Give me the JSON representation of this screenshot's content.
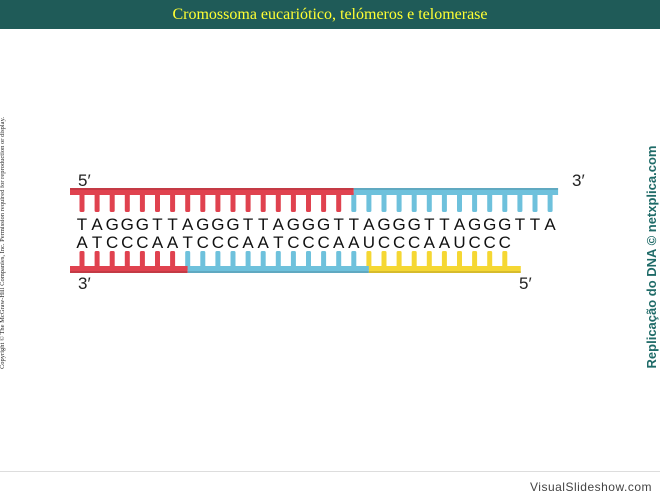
{
  "slide": {
    "title": "Cromossoma eucariótico, telómeros e telomerase",
    "copyright": "Copyright © The McGraw-Hill Companies, Inc. Permission required for reproduction or display.",
    "side_credit": "Replicação do DNA © netxplica.com",
    "footer": "VisualSlideshow.com"
  },
  "diagram": {
    "top_strand": {
      "sequence": "TAGGGTTAGGGTTAGGGTTAGGGTTAGGGTTA",
      "label_left": "5′",
      "label_right": "3′",
      "segments": [
        {
          "color": "#e0424f",
          "from": 0,
          "to": 18
        },
        {
          "color": "#6ec1dc",
          "from": 18,
          "to": 32
        }
      ]
    },
    "bottom_strand": {
      "sequence": "ATCCCAATCCCAATCCCAAUCCCAAUCCC",
      "label_left": "3′",
      "label_right": "5′",
      "segments": [
        {
          "color": "#e0424f",
          "from": 0,
          "to": 7
        },
        {
          "color": "#6ec1dc",
          "from": 7,
          "to": 19
        },
        {
          "color": "#f5d733",
          "from": 19,
          "to": 29
        }
      ]
    }
  }
}
